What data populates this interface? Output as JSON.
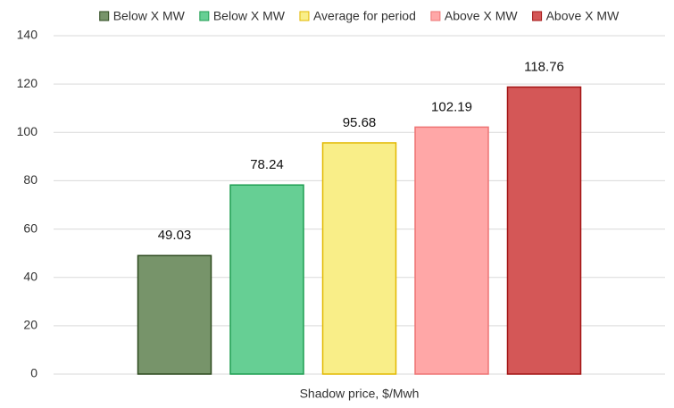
{
  "chart_data": {
    "type": "bar",
    "categories": [
      "Shadow price, $/Mwh"
    ],
    "series": [
      {
        "name": "Below X MW",
        "color": "#77946a",
        "edgecolor": "#2d4a1e",
        "values": [
          49.03
        ]
      },
      {
        "name": "Below X MW",
        "color": "#66cf94",
        "edgecolor": "#1f9e52",
        "values": [
          78.24
        ]
      },
      {
        "name": "Average for period",
        "color": "#f9ee88",
        "edgecolor": "#e2b800",
        "values": [
          95.68
        ]
      },
      {
        "name": "Above X MW",
        "color": "#ffa7a7",
        "edgecolor": "#ee7474",
        "values": [
          102.19
        ]
      },
      {
        "name": "Above X MW",
        "color": "#d45757",
        "edgecolor": "#a31515",
        "values": [
          118.76
        ]
      }
    ],
    "ylim": [
      0,
      140
    ],
    "yticks": [
      0,
      20,
      40,
      60,
      80,
      100,
      120,
      140
    ],
    "grid": true,
    "legend": "top"
  }
}
